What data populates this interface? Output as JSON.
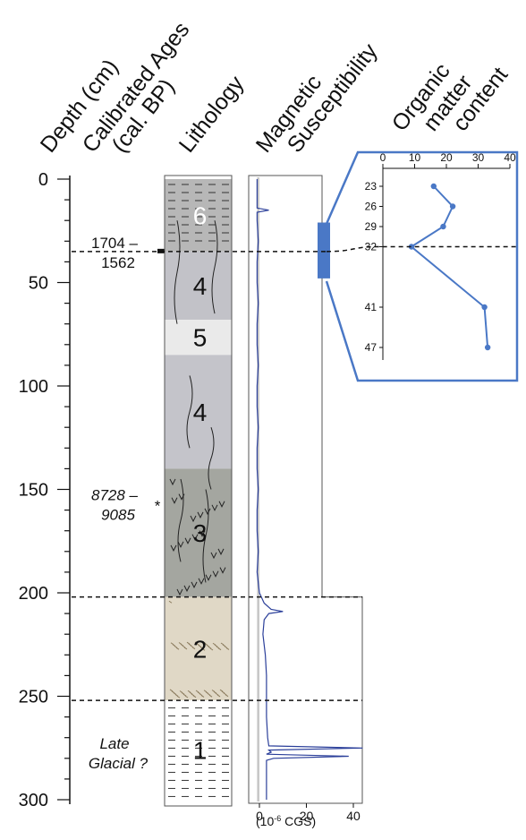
{
  "chart_data": {
    "type": "line",
    "headers": {
      "depth": "Depth (cm)",
      "ages_line1": "Calibrated Ages",
      "ages_line2": "(cal. BP)",
      "lithology": "Lithology",
      "magsus_line1": "Magnetic",
      "magsus_line2": "Susceptibility",
      "om_line1": "Organic",
      "om_line2": "matter",
      "om_line3": "content"
    },
    "depth_axis": {
      "range": [
        0,
        300
      ],
      "ticks": [
        "0",
        "50",
        "100",
        "150",
        "200",
        "250",
        "300"
      ]
    },
    "ages": [
      {
        "line1": "1704 –",
        "line2": "1562",
        "depth": 35,
        "italic": false
      },
      {
        "line1": "8728 –",
        "line2": "9085",
        "depth": 157,
        "italic": true,
        "marker": "*"
      },
      {
        "line1": "Late",
        "line2": "Glacial ?",
        "depth": 277,
        "italic": true
      }
    ],
    "lithology_units": [
      {
        "label": "6",
        "top": 0,
        "bottom": 35,
        "color": "#b7b7b7"
      },
      {
        "label": "4",
        "top": 35,
        "bottom": 68,
        "color": "#c2c2c8"
      },
      {
        "label": "5",
        "top": 68,
        "bottom": 85,
        "color": "#eaeaea"
      },
      {
        "label": "4",
        "top": 85,
        "bottom": 140,
        "color": "#c4c4ca"
      },
      {
        "label": "3",
        "top": 140,
        "bottom": 202,
        "color": "#a4a6a0"
      },
      {
        "label": "2",
        "top": 202,
        "bottom": 252,
        "color": "#e0d8c6"
      },
      {
        "label": "1",
        "top": 252,
        "bottom": 300,
        "color": "#ffffff"
      }
    ],
    "boundaries": [
      35,
      202,
      252
    ],
    "magnetic_susceptibility": {
      "xlim": [
        -5,
        45
      ],
      "xticks": [
        "0",
        "20",
        "40"
      ],
      "unit_label": "(10",
      "unit_exp": "-6",
      "unit_suffix": " CGS)",
      "depth": [
        0,
        8,
        14,
        15,
        16,
        20,
        30,
        40,
        50,
        60,
        70,
        80,
        90,
        100,
        110,
        120,
        130,
        140,
        150,
        160,
        170,
        180,
        190,
        200,
        205,
        208,
        209,
        210,
        213,
        220,
        230,
        240,
        250,
        260,
        270,
        274,
        275,
        276,
        277,
        278,
        279,
        280,
        281,
        285,
        290,
        300
      ],
      "values": [
        -1,
        -1,
        -1,
        4,
        -1,
        -1,
        -0.5,
        -1,
        -1,
        -0.5,
        -1,
        -1,
        -0.5,
        -1,
        -1,
        -0.5,
        -1,
        -1,
        -0.5,
        -1,
        -1,
        -0.5,
        -1,
        0,
        2,
        5,
        10,
        4,
        2,
        1.5,
        2.5,
        3,
        3,
        3,
        3.5,
        4,
        44,
        4,
        5,
        3,
        38,
        6,
        3,
        3,
        3,
        3
      ]
    },
    "organic_matter": {
      "xlim": [
        0,
        40
      ],
      "xticks": [
        "0",
        "10",
        "20",
        "30",
        "40"
      ],
      "depth_ticks": [
        "23",
        "26",
        "29",
        "32",
        "41",
        "47"
      ],
      "depth": [
        23,
        26,
        29,
        32,
        41,
        47
      ],
      "values": [
        16,
        22,
        19,
        9,
        32,
        33
      ],
      "sample_bar_depth": [
        21,
        48
      ],
      "line_color": "#4a78c6"
    }
  }
}
